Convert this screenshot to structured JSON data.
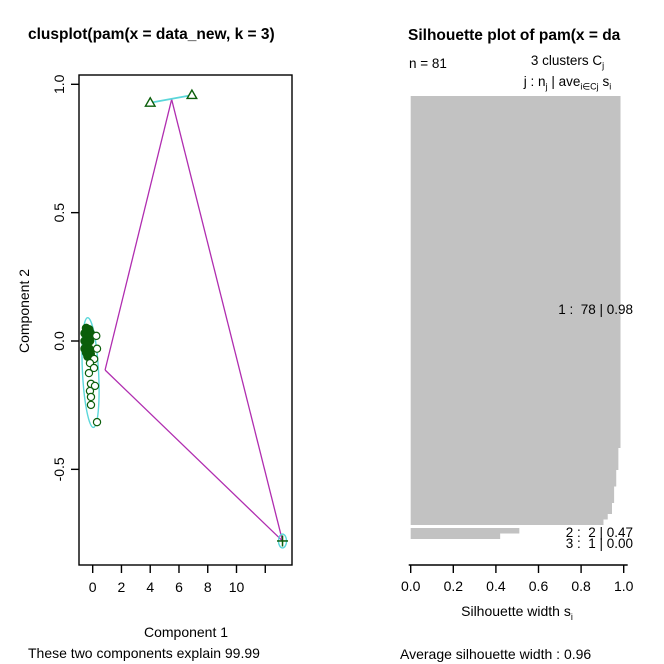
{
  "colors": {
    "dark_green": "#0B5E0B",
    "cyan_ellipse": "#5BD7DA",
    "magenta_lines": "#B02DB0",
    "bar_gray": "#C2C2C2",
    "axis_black": "#000000"
  },
  "left_panel": {
    "title": "clusplot(pam(x = data_new, k = 3)",
    "xlabel": "Component 1",
    "ylabel": "Component 2",
    "subtitle": "These two components explain 99.99"
  },
  "right_panel": {
    "title": "Silhouette plot of pam(x = da",
    "n_label": "n = 81",
    "header_line1_html": "3  clusters  C<sub>j</sub>",
    "header_line2_html": "j :  n<sub>j</sub> | ave<sub>i&#8712;Cj</sub>  s<sub>i</sub>",
    "xlabel_html": "Silhouette width s<sub>i</sub>",
    "subtitle": "Average silhouette width :  0.96"
  },
  "chart_data": [
    {
      "type": "scatter",
      "title": "clusplot(pam(x = data_new, k = 3)",
      "xlabel": "Component 1",
      "ylabel": "Component 2",
      "subtitle": "These two components explain 99.99",
      "xlim": [
        -1,
        14
      ],
      "ylim": [
        -1.04,
        1.04
      ],
      "x_ticks": [
        0,
        2,
        4,
        6,
        8,
        10,
        12
      ],
      "x_tick_labels": [
        "0",
        "2",
        "4",
        "6",
        "8",
        "10",
        ""
      ],
      "y_ticks": [
        1.0,
        0.5,
        0.0,
        -0.5
      ],
      "y_tick_labels": [
        "1.0",
        "0.5",
        "0.0",
        "-0.5"
      ],
      "clusters": [
        {
          "id": 1,
          "marker": "circle",
          "filled_points": [
            [
              -0.45,
              0.05
            ],
            [
              -0.25,
              0.045
            ],
            [
              -0.55,
              0.03
            ],
            [
              -0.15,
              0.03
            ],
            [
              -0.35,
              0.015
            ],
            [
              -0.55,
              0.0
            ],
            [
              -0.2,
              0.0
            ],
            [
              -0.4,
              -0.015
            ],
            [
              -0.55,
              -0.03
            ],
            [
              -0.25,
              -0.03
            ],
            [
              -0.45,
              -0.045
            ],
            [
              -0.15,
              -0.05
            ],
            [
              -0.35,
              -0.06
            ]
          ],
          "open_points": [
            [
              0.25,
              0.02
            ],
            [
              0.3,
              -0.03
            ],
            [
              0.1,
              -0.07
            ],
            [
              -0.19,
              -0.086
            ],
            [
              0.09,
              -0.105
            ],
            [
              -0.26,
              -0.125
            ],
            [
              -0.12,
              -0.167
            ],
            [
              0.16,
              -0.175
            ],
            [
              -0.19,
              -0.195
            ],
            [
              -0.12,
              -0.218
            ],
            [
              -0.12,
              -0.249
            ],
            [
              0.3,
              -0.316
            ]
          ]
        },
        {
          "id": 2,
          "marker": "triangle",
          "open_points": [
            [
              4.0,
              0.928
            ],
            [
              6.9,
              0.958
            ]
          ]
        },
        {
          "id": 3,
          "marker": "plus",
          "open_points": [
            [
              13.2,
              -0.779
            ]
          ]
        }
      ],
      "ellipses": [
        {
          "cx": -0.15,
          "cy": -0.123,
          "rx": 0.56,
          "ry": 0.214,
          "rotate": -3
        },
        {
          "cx": 13.2,
          "cy": -0.779,
          "rx": 0.28,
          "ry": 0.027,
          "rotate": 0
        }
      ],
      "cluster2_segment": [
        [
          4.0,
          0.928
        ],
        [
          6.9,
          0.958
        ]
      ],
      "center_lines": [
        [
          [
            0.86,
            -0.113
          ],
          [
            5.49,
            0.941
          ]
        ],
        [
          [
            5.49,
            0.941
          ],
          [
            13.2,
            -0.779
          ]
        ],
        [
          [
            0.86,
            -0.113
          ],
          [
            13.2,
            -0.779
          ]
        ]
      ]
    },
    {
      "type": "bar",
      "title": "Silhouette plot of pam(x = da",
      "n": 81,
      "k": 3,
      "average_silhouette_width": 0.96,
      "xlabel": "Silhouette width si",
      "subtitle": "Average silhouette width :  0.96",
      "xlim": [
        0,
        1
      ],
      "x_ticks": [
        0.0,
        0.2,
        0.4,
        0.6,
        0.8,
        1.0
      ],
      "x_tick_labels": [
        "0.0",
        "0.2",
        "0.4",
        "0.6",
        "0.8",
        "1.0"
      ],
      "clusters": [
        {
          "id": 1,
          "size": 78,
          "avg_width": 0.98,
          "label": "1 :  78 | 0.98",
          "bar_groups": [
            {
              "value": 0.985,
              "count": 64
            },
            {
              "value": 0.975,
              "count": 4
            },
            {
              "value": 0.965,
              "count": 3
            },
            {
              "value": 0.955,
              "count": 3
            },
            {
              "value": 0.945,
              "count": 2
            },
            {
              "value": 0.925,
              "count": 1
            },
            {
              "value": 0.905,
              "count": 1
            }
          ]
        },
        {
          "id": 2,
          "size": 2,
          "avg_width": 0.47,
          "label": "2 :  2 | 0.47",
          "bar_groups": [
            {
              "value": 0.51,
              "count": 1
            },
            {
              "value": 0.42,
              "count": 1
            }
          ]
        },
        {
          "id": 3,
          "size": 1,
          "avg_width": 0.0,
          "label": "3 :  1 | 0.00",
          "bar_groups": [
            {
              "value": 0.0,
              "count": 1
            }
          ]
        }
      ]
    }
  ]
}
